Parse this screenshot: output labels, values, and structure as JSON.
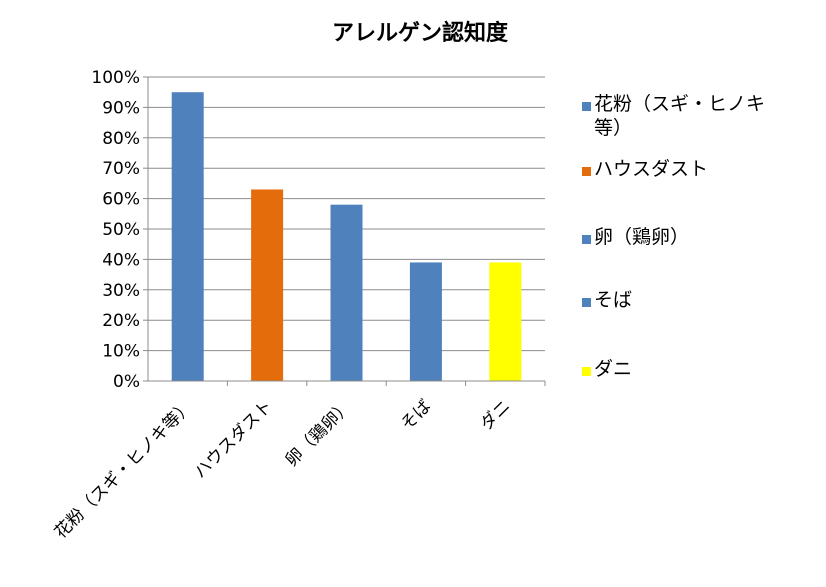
{
  "chart_data": {
    "type": "bar",
    "title": "アレルゲン認知度",
    "categories": [
      "花粉（スギ・ヒノキ等）",
      "ハウスダスト",
      "卵（鶏卵）",
      "そば",
      "ダニ"
    ],
    "values": [
      0.95,
      0.63,
      0.58,
      0.39,
      0.39
    ],
    "bar_colors": [
      "#4f81bd",
      "#e46c0a",
      "#4f81bd",
      "#4f81bd",
      "#ffff00"
    ],
    "ylim": [
      0,
      1
    ],
    "yticks": [
      "0%",
      "10%",
      "20%",
      "30%",
      "40%",
      "50%",
      "60%",
      "70%",
      "80%",
      "90%",
      "100%"
    ],
    "grid": true,
    "legend": {
      "placement": "right",
      "entries": [
        {
          "label": "花粉（スギ・ヒノキ等）",
          "color": "#4f81bd"
        },
        {
          "label": "ハウスダスト",
          "color": "#e46c0a"
        },
        {
          "label": "卵（鶏卵）",
          "color": "#4f81bd"
        },
        {
          "label": "そば",
          "color": "#4f81bd"
        },
        {
          "label": "ダニ",
          "color": "#ffff00"
        }
      ]
    }
  }
}
